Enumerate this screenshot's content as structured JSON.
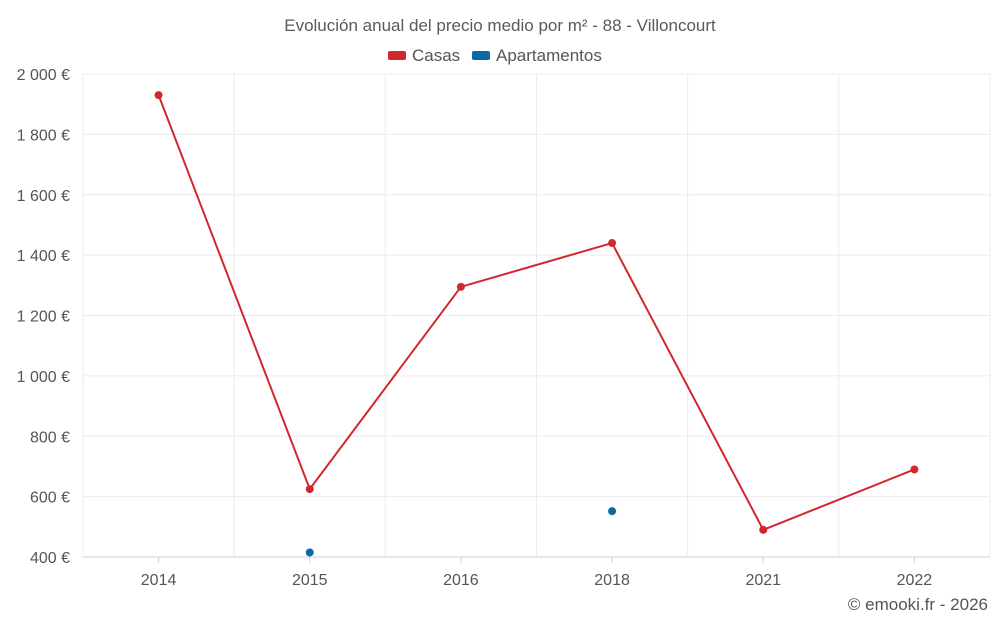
{
  "chart_data": {
    "type": "line",
    "title": "Evolución anual del precio medio por m² - 88 - Villoncourt",
    "categories": [
      "2014",
      "2015",
      "2016",
      "2018",
      "2021",
      "2022"
    ],
    "y_tick_labels": [
      "400 €",
      "600 €",
      "800 €",
      "1 000 €",
      "1 200 €",
      "1 400 €",
      "1 600 €",
      "1 800 €",
      "2 000 €"
    ],
    "y_ticks": [
      400,
      600,
      800,
      1000,
      1200,
      1400,
      1600,
      1800,
      2000
    ],
    "ylim": [
      400,
      2000
    ],
    "grid": true,
    "legend_position": "top-center",
    "series": [
      {
        "name": "Casas",
        "color": "#d0282e",
        "values": [
          1930,
          625,
          1295,
          1440,
          490,
          690
        ]
      },
      {
        "name": "Apartamentos",
        "color": "#0a6aa1",
        "values": [
          null,
          415,
          null,
          552,
          null,
          null
        ]
      }
    ]
  },
  "footer": {
    "text": "© emooki.fr - 2026"
  }
}
